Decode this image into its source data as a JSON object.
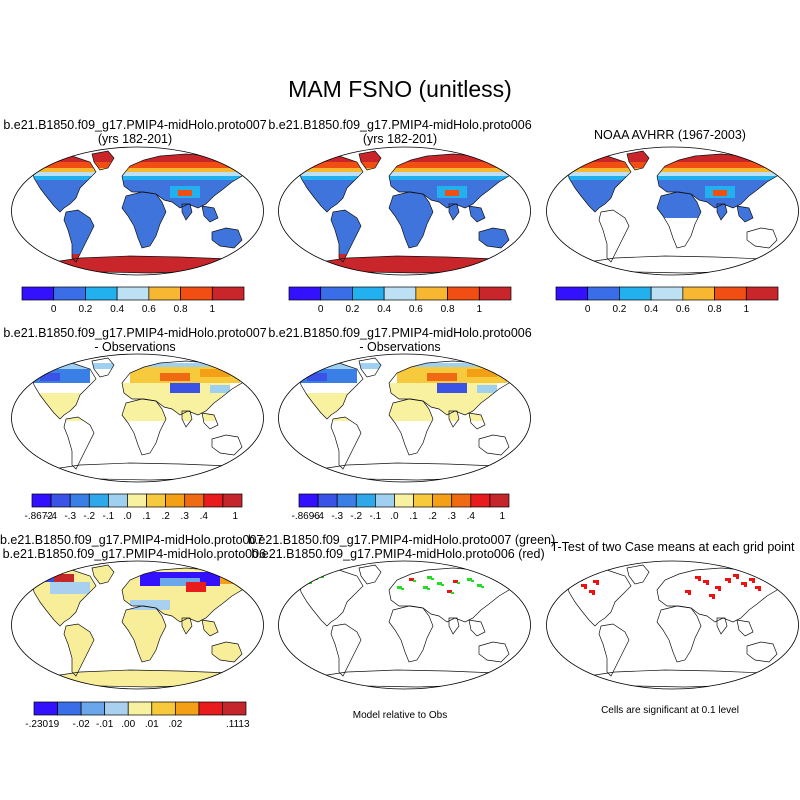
{
  "title": "MAM FSNO (unitless)",
  "panels": {
    "p1": {
      "line1": "b.e21.B1850.f09_g17.PMIP4-midHolo.proto007",
      "line2": "(yrs 182-201)"
    },
    "p2": {
      "line1": "b.e21.B1850.f09_g17.PMIP4-midHolo.proto006",
      "line2": "(yrs 182-201)"
    },
    "p3": {
      "line1": "NOAA AVHRR (1967-2003)"
    },
    "p4": {
      "line1": "b.e21.B1850.f09_g17.PMIP4-midHolo.proto007",
      "line2": "- Observations"
    },
    "p5": {
      "line1": "b.e21.B1850.f09_g17.PMIP4-midHolo.proto006",
      "line2": "- Observations"
    },
    "p7": {
      "line1": "b.e21.B1850.f09_g17.PMIP4-midHolo.proto007",
      "line2": "- b.e21.B1850.f09_g17.PMIP4-midHolo.proto006"
    },
    "p8": {
      "line1": "b.e21.B1850.f09_g17.PMIP4-midHolo.proto007 (green)",
      "line2": "b.e21.B1850.f09_g17.PMIP4-midHolo.proto006 (red)",
      "note": "Model relative to Obs"
    },
    "p9": {
      "line1": "T-Test of two Case means at each grid point",
      "note": "Cells are significant at 0.1 level"
    }
  },
  "chart_data": [
    {
      "type": "heatmap",
      "title": "b.e21.B1850.f09_g17.PMIP4-midHolo.proto007 (yrs 182-201)",
      "colorbar": {
        "colors": [
          "#3311ff",
          "#3a6ee8",
          "#22b1ee",
          "#bde0f5",
          "#f7b731",
          "#f04e12",
          "#c9262b"
        ],
        "ticks": [
          "0",
          "0.2",
          "0.4",
          "0.6",
          "0.8",
          "1"
        ]
      }
    },
    {
      "type": "heatmap",
      "title": "b.e21.B1850.f09_g17.PMIP4-midHolo.proto006 (yrs 182-201)",
      "colorbar": {
        "colors": [
          "#3311ff",
          "#3a6ee8",
          "#22b1ee",
          "#bde0f5",
          "#f7b731",
          "#f04e12",
          "#c9262b"
        ],
        "ticks": [
          "0",
          "0.2",
          "0.4",
          "0.6",
          "0.8",
          "1"
        ]
      }
    },
    {
      "type": "heatmap",
      "title": "NOAA AVHRR (1967-2003)",
      "colorbar": {
        "colors": [
          "#3311ff",
          "#3a6ee8",
          "#22b1ee",
          "#bde0f5",
          "#f7b731",
          "#f04e12",
          "#c9262b"
        ],
        "ticks": [
          "0",
          "0.2",
          "0.4",
          "0.6",
          "0.8",
          "1"
        ]
      }
    },
    {
      "type": "heatmap",
      "title": "proto007 - Observations",
      "colorbar": {
        "colors": [
          "#3311ff",
          "#3a52e6",
          "#3a7fe6",
          "#2fa8ea",
          "#9fd0f0",
          "#f8f1a0",
          "#f7c93c",
          "#f3a017",
          "#ef6a12",
          "#e81c1c",
          "#c4262b"
        ],
        "ticks": [
          "-.8672",
          "-.4",
          "-.3",
          "-.2",
          "-.1",
          ".0",
          ".1",
          ".2",
          ".3",
          ".4",
          "1"
        ]
      }
    },
    {
      "type": "heatmap",
      "title": "proto006 - Observations",
      "colorbar": {
        "colors": [
          "#3311ff",
          "#3a52e6",
          "#3a7fe6",
          "#2fa8ea",
          "#9fd0f0",
          "#f8f1a0",
          "#f7c93c",
          "#f3a017",
          "#ef6a12",
          "#e81c1c",
          "#c4262b"
        ],
        "ticks": [
          "-.8696",
          "-.4",
          "-.3",
          "-.2",
          "-.1",
          ".0",
          ".1",
          ".2",
          ".3",
          ".4",
          "1"
        ]
      }
    },
    {
      "type": "heatmap",
      "title": "proto007 - proto006",
      "colorbar": {
        "colors": [
          "#3311ff",
          "#3a6ee8",
          "#6aa6ea",
          "#a9d0ee",
          "#f8f1a0",
          "#f7c93c",
          "#f3a017",
          "#e81c1c",
          "#c4262b"
        ],
        "ticks": [
          "-.23019",
          "-.02",
          "-.01",
          ".00",
          ".01",
          ".02",
          ".1113"
        ]
      }
    }
  ],
  "colors": {
    "land_ref": "#3f74dc",
    "snow_high": "#c9262b",
    "diff_pos": "#f8ee9a",
    "green": "#22dd22",
    "red": "#ee1111"
  }
}
